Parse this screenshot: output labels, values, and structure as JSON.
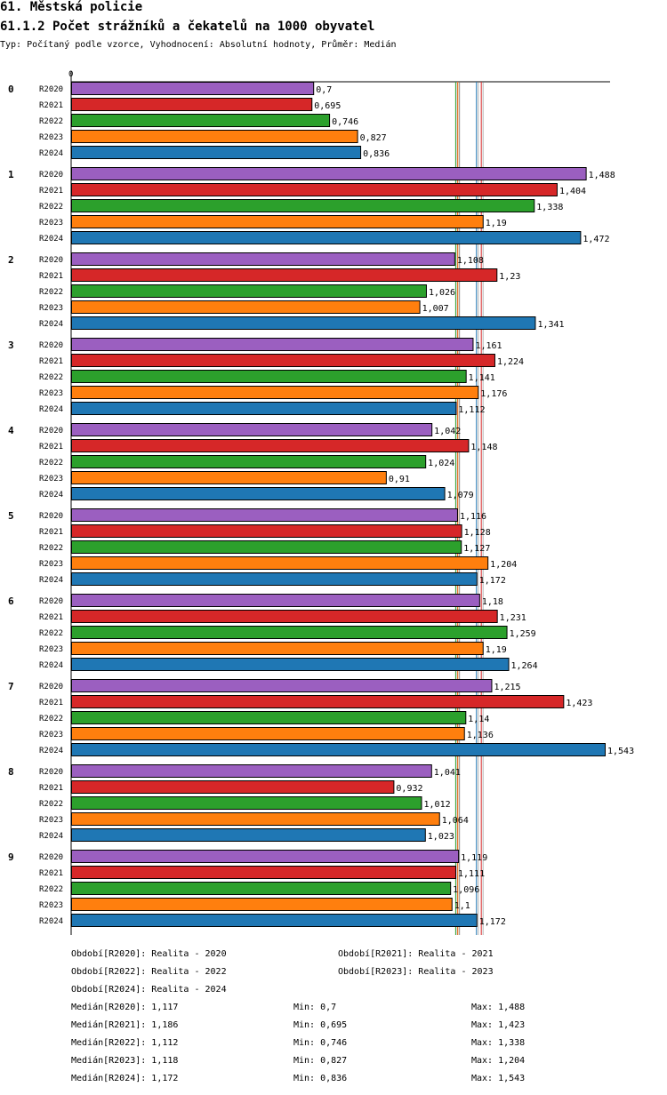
{
  "header": {
    "title": "61. Městská policie",
    "subtitle": "61.1.2 Počet strážníků a čekatelů na 1000 obyvatel",
    "type_line": "Typ: Počítaný podle vzorce, Vyhodnocení: Absolutní hodnoty, Průměr: Medián"
  },
  "colors": {
    "R2020": "#9b5fc0",
    "R2021": "#d62728",
    "R2022": "#2ca02c",
    "R2023": "#ff7f0e",
    "R2024": "#1f77b4"
  },
  "chart_data": {
    "type": "bar",
    "orientation": "horizontal",
    "x_tick_label": "0",
    "xlim": [
      0,
      1.543
    ],
    "categories": [
      "0",
      "1",
      "2",
      "3",
      "4",
      "5",
      "6",
      "7",
      "8",
      "9"
    ],
    "series": [
      {
        "name": "R2020",
        "values": [
          0.7,
          1.488,
          1.108,
          1.161,
          1.042,
          1.116,
          1.18,
          1.215,
          1.041,
          1.119
        ],
        "labels": [
          "0,7",
          "1,488",
          "1,108",
          "1,161",
          "1,042",
          "1,116",
          "1,18",
          "1,215",
          "1,041",
          "1,119"
        ]
      },
      {
        "name": "R2021",
        "values": [
          0.695,
          1.404,
          1.23,
          1.224,
          1.148,
          1.128,
          1.231,
          1.423,
          0.932,
          1.111
        ],
        "labels": [
          "0,695",
          "1,404",
          "1,23",
          "1,224",
          "1,148",
          "1,128",
          "1,231",
          "1,423",
          "0,932",
          "1,111"
        ]
      },
      {
        "name": "R2022",
        "values": [
          0.746,
          1.338,
          1.026,
          1.141,
          1.024,
          1.127,
          1.259,
          1.14,
          1.012,
          1.096
        ],
        "labels": [
          "0,746",
          "1,338",
          "1,026",
          "1,141",
          "1,024",
          "1,127",
          "1,259",
          "1,14",
          "1,012",
          "1,096"
        ]
      },
      {
        "name": "R2023",
        "values": [
          0.827,
          1.19,
          1.007,
          1.176,
          0.91,
          1.204,
          1.19,
          1.136,
          1.064,
          1.1
        ],
        "labels": [
          "0,827",
          "1,19",
          "1,007",
          "1,176",
          "0,91",
          "1,204",
          "1,19",
          "1,136",
          "1,064",
          "1,1"
        ]
      },
      {
        "name": "R2024",
        "values": [
          0.836,
          1.472,
          1.341,
          1.112,
          1.079,
          1.172,
          1.264,
          1.543,
          1.023,
          1.172
        ],
        "labels": [
          "0,836",
          "1,472",
          "1,341",
          "1,112",
          "1,079",
          "1,172",
          "1,264",
          "1,543",
          "1,023",
          "1,172"
        ]
      }
    ],
    "medians": [
      1.117,
      1.186,
      1.112,
      1.118,
      1.172
    ]
  },
  "legend": {
    "periods": [
      "Období[R2020]: Realita - 2020",
      "Období[R2021]: Realita - 2021",
      "Období[R2022]: Realita - 2022",
      "Období[R2023]: Realita - 2023",
      "Období[R2024]: Realita - 2024"
    ],
    "stats": [
      {
        "median": "Medián[R2020]: 1,117",
        "min": "Min: 0,7",
        "max": "Max: 1,488"
      },
      {
        "median": "Medián[R2021]: 1,186",
        "min": "Min: 0,695",
        "max": "Max: 1,423"
      },
      {
        "median": "Medián[R2022]: 1,112",
        "min": "Min: 0,746",
        "max": "Max: 1,338"
      },
      {
        "median": "Medián[R2023]: 1,118",
        "min": "Min: 0,827",
        "max": "Max: 1,204"
      },
      {
        "median": "Medián[R2024]: 1,172",
        "min": "Min: 0,836",
        "max": "Max: 1,543"
      }
    ]
  }
}
